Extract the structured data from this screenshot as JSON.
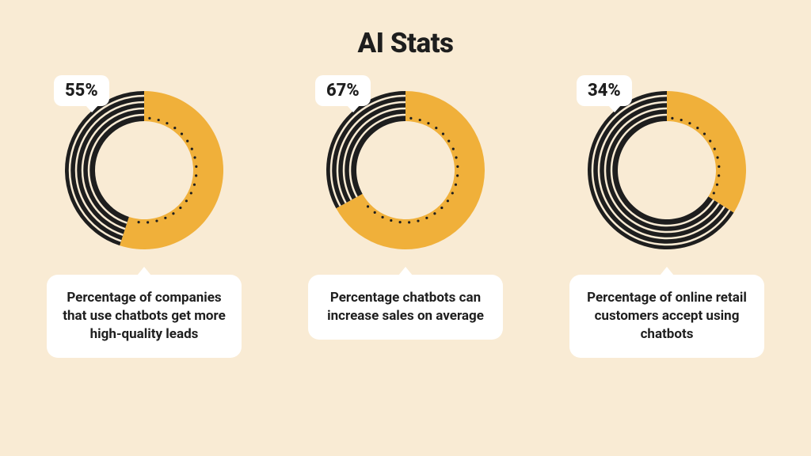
{
  "title": "AI Stats",
  "background_color": "#f9ebd4",
  "bubble_bg": "#ffffff",
  "text_color": "#1e1e1e",
  "title_fontsize": 35,
  "pct_fontsize": 22,
  "caption_fontsize": 17,
  "donut": {
    "size": 220,
    "outer_r": 100,
    "inner_r": 62,
    "fill_color": "#f0b03a",
    "remain_bg": "#1e1e1e",
    "stripe_color": "#f9ebd4",
    "stripe_radii": [
      70,
      78,
      86,
      94
    ],
    "stripe_width": 2.5,
    "dot_radius_track": 66,
    "dot_r": 1.6,
    "dot_color": "#1e1e1e",
    "dot_step_deg": 10,
    "dot_margin_deg": 6,
    "start_angle_deg": -90
  },
  "stats": [
    {
      "value": 55,
      "pct_label": "55%",
      "caption": "Percentage of companies that use chatbots get more high-quality leads"
    },
    {
      "value": 67,
      "pct_label": "67%",
      "caption": "Percentage chatbots can increase sales on average"
    },
    {
      "value": 34,
      "pct_label": "34%",
      "caption": "Percentage of online retail customers accept using chatbots"
    }
  ]
}
